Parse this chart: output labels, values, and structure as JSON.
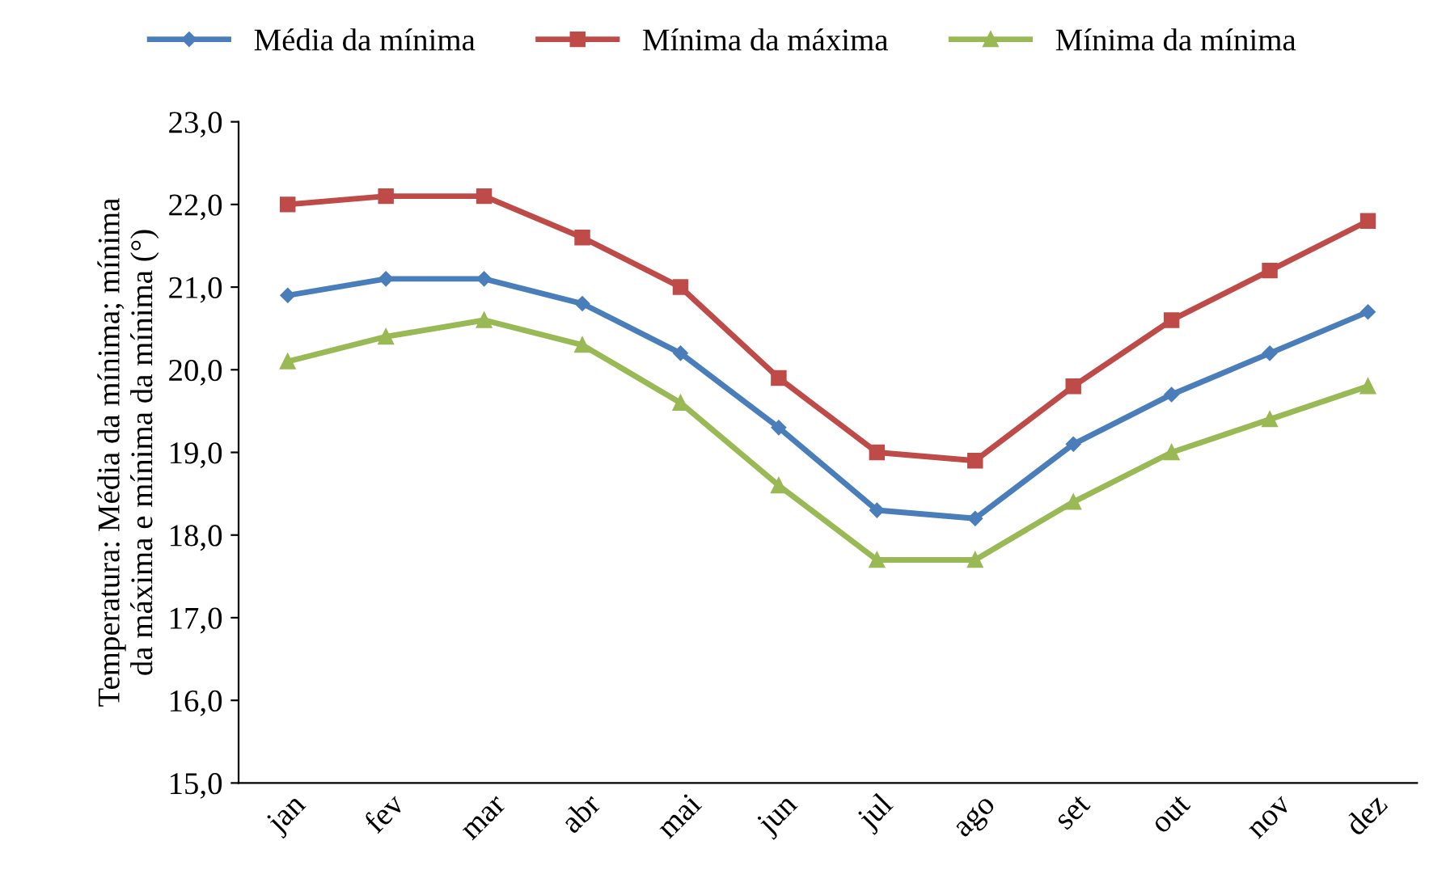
{
  "chart_data": {
    "type": "line",
    "ylabel": "Temperatura: Média da mínima; mínima\nda máxima e mínima da mínima (°)",
    "categories": [
      "jan",
      "fev",
      "mar",
      "abr",
      "mai",
      "jun",
      "jul",
      "ago",
      "set",
      "out",
      "nov",
      "dez"
    ],
    "series": [
      {
        "name": "Média da mínima",
        "color": "#4a7ebb",
        "marker": "diamond",
        "values": [
          20.9,
          21.1,
          21.1,
          20.8,
          20.2,
          19.3,
          18.3,
          18.2,
          19.1,
          19.7,
          20.2,
          20.7
        ]
      },
      {
        "name": "Mínima da máxima",
        "color": "#be4b48",
        "marker": "square",
        "values": [
          22.0,
          22.1,
          22.1,
          21.6,
          21.0,
          19.9,
          19.0,
          18.9,
          19.8,
          20.6,
          21.2,
          21.8
        ]
      },
      {
        "name": "Mínima da mínima",
        "color": "#98b954",
        "marker": "triangle",
        "values": [
          20.1,
          20.4,
          20.6,
          20.3,
          19.6,
          18.6,
          17.7,
          17.7,
          18.4,
          19.0,
          19.4,
          19.8
        ]
      }
    ],
    "ylim": [
      15,
      23
    ],
    "yticks": [
      {
        "value": 15,
        "label": "15,0"
      },
      {
        "value": 16,
        "label": "16,0"
      },
      {
        "value": 17,
        "label": "17,0"
      },
      {
        "value": 18,
        "label": "18,0"
      },
      {
        "value": 19,
        "label": "19,0"
      },
      {
        "value": 20,
        "label": "20,0"
      },
      {
        "value": 21,
        "label": "21,0"
      },
      {
        "value": 22,
        "label": "22,0"
      },
      {
        "value": 23,
        "label": "23,0"
      }
    ],
    "grid": false,
    "legend": "top",
    "line_style": "solid"
  }
}
